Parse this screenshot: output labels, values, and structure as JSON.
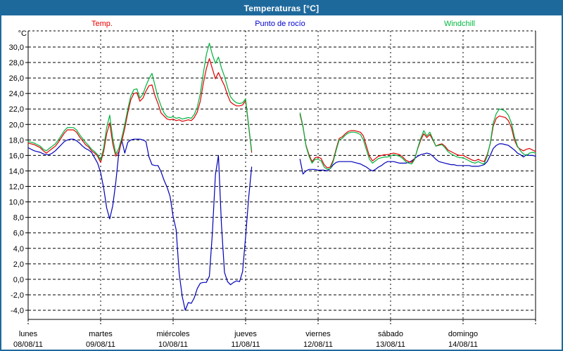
{
  "title_bar": {
    "title": "Temperaturas [°C]"
  },
  "chart_data": {
    "type": "line",
    "title": "Temperaturas [°C]",
    "y_axis": {
      "unit": "°C",
      "tick_labels": [
        "30,0",
        "28,0",
        "26,0",
        "24,0",
        "22,0",
        "20,0",
        "18,0",
        "16,0",
        "14,0",
        "12,0",
        "10,0",
        "8,0",
        "6,0",
        "4,0",
        "2,0",
        "0,0",
        "-2,0",
        "-4,0"
      ],
      "tick_values": [
        30,
        28,
        26,
        24,
        22,
        20,
        18,
        16,
        14,
        12,
        10,
        8,
        6,
        4,
        2,
        0,
        -2,
        -4
      ],
      "grid_step": 2,
      "ylim_drawn": [
        -5.2,
        32.1
      ]
    },
    "x_axis": {
      "days": [
        {
          "label": "lunes",
          "date": "08/08/11"
        },
        {
          "label": "martes",
          "date": "09/08/11"
        },
        {
          "label": "miércoles",
          "date": "10/08/11"
        },
        {
          "label": "jueves",
          "date": "11/08/11"
        },
        {
          "label": "viernes",
          "date": "12/08/11"
        },
        {
          "label": "sábado",
          "date": "13/08/11"
        },
        {
          "label": "domingo",
          "date": "14/08/11"
        }
      ],
      "hours_per_day": 24,
      "range_hours": [
        0,
        168
      ],
      "sampling_hours": 1
    },
    "legend": [
      {
        "label": "Temp.",
        "color": "#e60000"
      },
      {
        "label": "Punto de rocío",
        "color": "#0000cc"
      },
      {
        "label": "Windchill",
        "color": "#00b93e"
      }
    ],
    "data_gap_hours": [
      75,
      89
    ],
    "grid": {
      "on": true,
      "style": "dashed",
      "color": "#000000"
    },
    "series": [
      {
        "id": "dew_point",
        "name": "Punto de rocío",
        "color": "#0000b8",
        "values": [
          17.0,
          16.8,
          16.6,
          16.5,
          16.4,
          16.2,
          16.1,
          16.1,
          16.3,
          16.6,
          17.0,
          17.4,
          17.8,
          18.0,
          18.1,
          18.1,
          17.9,
          17.6,
          17.2,
          16.9,
          16.7,
          16.4,
          15.7,
          15.0,
          13.8,
          11.8,
          9.2,
          7.8,
          9.5,
          12.5,
          16.3,
          18.0,
          16.3,
          17.7,
          18.0,
          18.1,
          18.1,
          18.1,
          18.0,
          17.8,
          15.8,
          14.8,
          14.7,
          14.7,
          13.9,
          12.8,
          11.9,
          10.7,
          8.1,
          6.4,
          0.8,
          -2.2,
          -4.0,
          -3.0,
          -3.1,
          -2.4,
          -1.2,
          -0.5,
          -0.4,
          -0.4,
          0.4,
          6.0,
          13.5,
          16.0,
          7.0,
          0.9,
          -0.3,
          -0.7,
          -0.4,
          -0.2,
          -0.3,
          1.0,
          5.5,
          10.5,
          14.5,
          null,
          null,
          null,
          null,
          null,
          null,
          null,
          null,
          null,
          null,
          null,
          null,
          null,
          null,
          null,
          15.5,
          13.6,
          14.0,
          14.2,
          14.2,
          14.2,
          14.1,
          14.1,
          14.1,
          14.0,
          14.3,
          14.8,
          15.1,
          15.2,
          15.2,
          15.2,
          15.2,
          15.2,
          15.1,
          15.0,
          14.9,
          14.7,
          14.5,
          14.2,
          14.0,
          14.2,
          14.5,
          14.7,
          15.0,
          15.2,
          15.2,
          15.2,
          15.1,
          15.0,
          15.0,
          15.0,
          15.1,
          15.3,
          15.6,
          15.9,
          16.1,
          16.2,
          16.3,
          16.2,
          15.9,
          15.5,
          15.2,
          15.1,
          15.0,
          14.9,
          14.8,
          14.8,
          14.7,
          14.7,
          14.7,
          14.7,
          14.7,
          14.6,
          14.6,
          14.6,
          14.7,
          14.8,
          15.2,
          16.0,
          16.9,
          17.3,
          17.5,
          17.5,
          17.4,
          17.3,
          17.0,
          16.7,
          16.3,
          16.1,
          15.8,
          16.1,
          16.0,
          16.0,
          15.9
        ]
      },
      {
        "id": "temp",
        "name": "Temp.",
        "color": "#dd0000",
        "values": [
          17.6,
          17.5,
          17.4,
          17.2,
          17.0,
          16.6,
          16.3,
          16.6,
          16.9,
          17.2,
          17.7,
          18.3,
          18.9,
          19.3,
          19.3,
          19.3,
          19.0,
          18.4,
          17.9,
          17.4,
          17.1,
          16.6,
          16.3,
          15.9,
          15.1,
          16.5,
          18.8,
          20.2,
          17.5,
          15.9,
          16.5,
          17.8,
          19.5,
          21.5,
          23.2,
          24.0,
          24.1,
          23.0,
          23.4,
          24.3,
          25.0,
          25.1,
          23.7,
          22.7,
          21.5,
          21.1,
          20.7,
          20.6,
          20.7,
          20.5,
          20.6,
          20.4,
          20.5,
          20.6,
          20.5,
          20.9,
          21.6,
          23.0,
          25.3,
          27.2,
          28.5,
          27.2,
          25.9,
          26.7,
          25.8,
          25.0,
          23.8,
          22.9,
          22.6,
          22.4,
          22.4,
          22.5,
          23.1,
          19.8,
          16.4,
          null,
          null,
          null,
          null,
          null,
          null,
          null,
          null,
          null,
          null,
          null,
          null,
          null,
          null,
          null,
          21.3,
          19.7,
          17.3,
          16.1,
          15.2,
          15.7,
          15.8,
          15.6,
          14.8,
          14.4,
          14.5,
          15.4,
          16.9,
          18.2,
          18.4,
          18.8,
          19.1,
          19.2,
          19.2,
          19.1,
          19.0,
          18.5,
          17.2,
          15.9,
          15.3,
          15.6,
          15.9,
          16.0,
          16.1,
          16.1,
          16.2,
          16.3,
          16.2,
          16.1,
          15.8,
          15.4,
          15.2,
          15.1,
          15.6,
          16.9,
          18.0,
          18.8,
          18.3,
          18.7,
          18.0,
          17.2,
          17.4,
          17.5,
          17.2,
          16.7,
          16.5,
          16.3,
          16.1,
          16.0,
          16.0,
          15.8,
          15.6,
          15.4,
          15.3,
          15.5,
          15.3,
          15.2,
          16.1,
          17.5,
          19.8,
          20.8,
          21.1,
          21.0,
          20.9,
          20.5,
          19.6,
          18.0,
          17.1,
          16.8,
          16.6,
          16.8,
          16.9,
          16.7,
          16.5
        ]
      },
      {
        "id": "windchill",
        "name": "Windchill",
        "color": "#00b33c",
        "values": [
          17.8,
          17.7,
          17.6,
          17.4,
          17.2,
          16.8,
          16.6,
          16.9,
          17.2,
          17.5,
          18.0,
          18.6,
          19.2,
          19.6,
          19.6,
          19.6,
          19.3,
          18.7,
          18.2,
          17.7,
          17.3,
          16.8,
          16.5,
          16.1,
          15.4,
          17.0,
          19.6,
          21.2,
          18.2,
          16.2,
          16.9,
          18.3,
          20.0,
          22.0,
          23.7,
          24.5,
          24.6,
          23.4,
          23.9,
          25.0,
          25.9,
          26.6,
          25.0,
          23.5,
          22.4,
          21.5,
          21.0,
          20.9,
          21.0,
          20.8,
          20.9,
          20.7,
          20.8,
          20.9,
          20.8,
          21.3,
          22.2,
          24.0,
          26.6,
          29.0,
          30.5,
          29.0,
          27.9,
          28.7,
          27.3,
          26.2,
          24.8,
          23.6,
          23.1,
          22.8,
          22.7,
          22.8,
          23.3,
          19.9,
          16.6,
          null,
          null,
          null,
          null,
          null,
          null,
          null,
          null,
          null,
          null,
          null,
          null,
          null,
          null,
          null,
          21.5,
          19.8,
          17.2,
          15.9,
          15.0,
          15.5,
          15.5,
          15.3,
          14.5,
          14.2,
          14.3,
          15.2,
          16.7,
          18.0,
          18.2,
          18.6,
          18.9,
          19.0,
          19.0,
          18.9,
          18.7,
          18.0,
          16.7,
          15.5,
          15.0,
          15.3,
          15.6,
          15.7,
          15.8,
          15.8,
          15.9,
          16.1,
          16.0,
          15.9,
          15.6,
          15.2,
          15.0,
          14.9,
          15.5,
          17.0,
          18.2,
          19.2,
          18.5,
          19.0,
          18.1,
          17.2,
          17.3,
          17.4,
          17.0,
          16.5,
          16.2,
          16.0,
          15.8,
          15.7,
          15.7,
          15.5,
          15.3,
          15.1,
          15.0,
          15.2,
          15.0,
          14.9,
          15.9,
          17.6,
          20.2,
          21.4,
          22.0,
          21.9,
          21.7,
          21.2,
          20.2,
          18.4,
          17.2,
          16.6,
          16.2,
          16.0,
          16.3,
          16.4,
          16.3
        ]
      }
    ]
  }
}
